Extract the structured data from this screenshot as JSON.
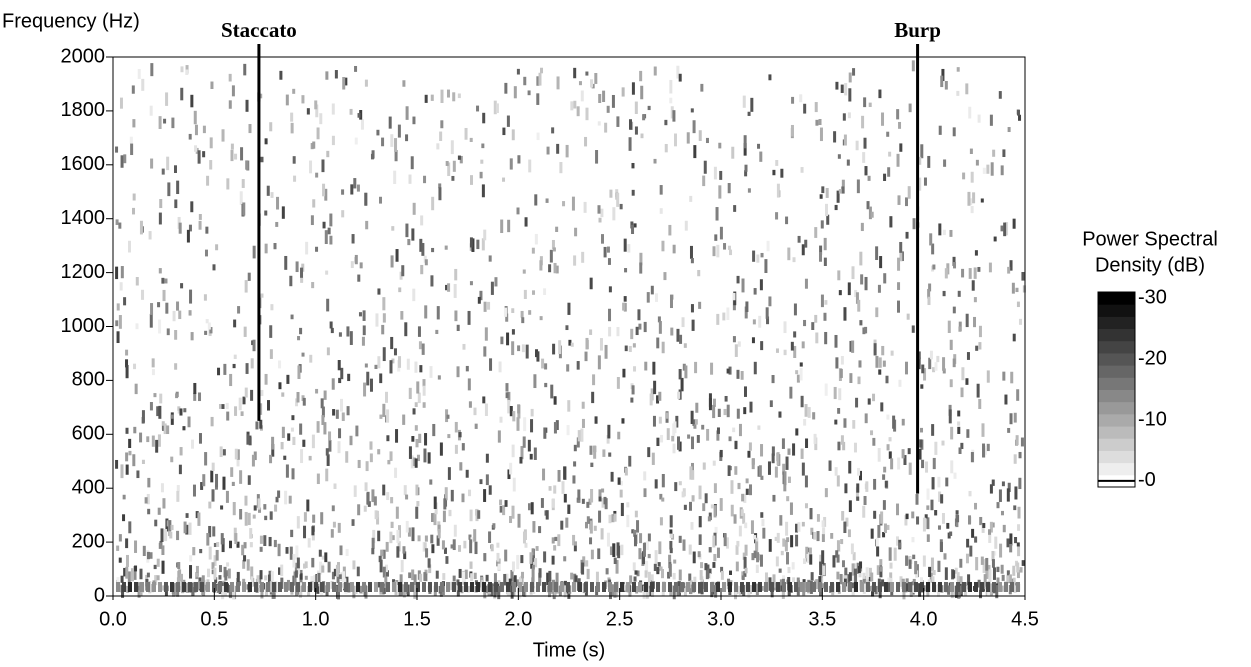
{
  "chart_data": {
    "type": "spectrogram",
    "ylabel": "Frequency (Hz)",
    "xlabel": "Time (s)",
    "xlim": [
      0,
      4.5
    ],
    "ylim": [
      0,
      2000
    ],
    "xticks": [
      {
        "value": 0,
        "label": "0.0"
      },
      0.5,
      {
        "value": 1,
        "label": "1.0"
      },
      1.5,
      {
        "value": 2,
        "label": "2.0"
      },
      2.5,
      {
        "value": 3,
        "label": "3.0"
      },
      3.5,
      {
        "value": 4,
        "label": "4.0"
      },
      4.5
    ],
    "yticks": [
      0,
      200,
      400,
      600,
      800,
      1000,
      1200,
      1400,
      1600,
      1800,
      2000
    ],
    "colors": [
      "#ffffff",
      "#000000"
    ],
    "colorbar_title": [
      "Power Spectral",
      "Density (dB)"
    ],
    "clim": [
      1,
      -31
    ],
    "cticks": [
      -30,
      -20,
      -10,
      {
        "value": 0,
        "label": "-0"
      }
    ],
    "annotations": [
      {
        "text": "Staccato",
        "x": 0.72,
        "y": 650
      },
      {
        "text": "Burp",
        "x": 3.97,
        "y": 380
      }
    ]
  }
}
